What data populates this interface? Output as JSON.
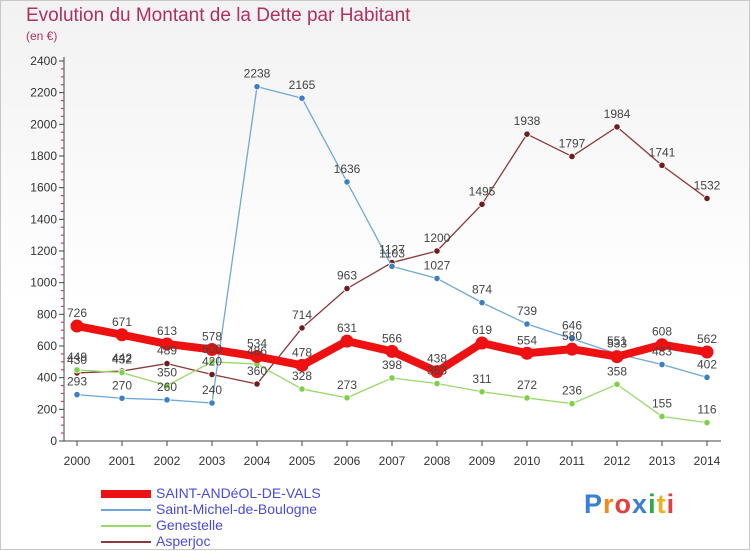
{
  "title": "Evolution du Montant de la Dette par Habitant",
  "unit_label": "(en €)",
  "logo": {
    "text": "Proxiti",
    "letter_colors": [
      "#3a7fd5",
      "#f08a1c",
      "#e23f3f",
      "#3a7fd5",
      "#2da84a",
      "#f0b21c",
      "#e23f3f"
    ]
  },
  "chart_data": {
    "type": "line",
    "title": "Evolution du Montant de la Dette par Habitant",
    "ylabel": "(en €)",
    "xlabel": "",
    "x": [
      "2000",
      "2001",
      "2002",
      "2003",
      "2004",
      "2005",
      "2006",
      "2007",
      "2008",
      "2009",
      "2010",
      "2011",
      "2012",
      "2013",
      "2014"
    ],
    "ylim": [
      0,
      2400
    ],
    "yticks": [
      0,
      200,
      400,
      600,
      800,
      1000,
      1200,
      1400,
      1600,
      1800,
      2000,
      2200,
      2400
    ],
    "grid": false,
    "legend_position": "bottom-left",
    "series": [
      {
        "name": "SAINT-ANDéOL-DE-VALS",
        "color": "#ee1111",
        "dot": "#ee1111",
        "width": 8,
        "values": [
          726,
          671,
          613,
          578,
          534,
          478,
          631,
          566,
          438,
          619,
          554,
          580,
          533,
          608,
          562
        ]
      },
      {
        "name": "Saint-Michel-de-Boulogne",
        "color": "#6fa8d8",
        "dot": "#3d7fc4",
        "width": 1.3,
        "values": [
          293,
          270,
          260,
          240,
          2238,
          2165,
          1636,
          1103,
          1027,
          874,
          739,
          646,
          551,
          483,
          402
        ]
      },
      {
        "name": "Genestelle",
        "color": "#99d96a",
        "dot": "#7cd14a",
        "width": 1.3,
        "values": [
          449,
          432,
          350,
          500,
          486,
          328,
          273,
          398,
          363,
          311,
          272,
          236,
          358,
          155,
          116
        ]
      },
      {
        "name": "Asperjoc",
        "color": "#8b3a3a",
        "dot": "#6e1e1e",
        "width": 1.3,
        "values": [
          430,
          442,
          489,
          420,
          360,
          714,
          963,
          1127,
          1200,
          1495,
          1938,
          1797,
          1984,
          1741,
          1532
        ]
      }
    ]
  }
}
